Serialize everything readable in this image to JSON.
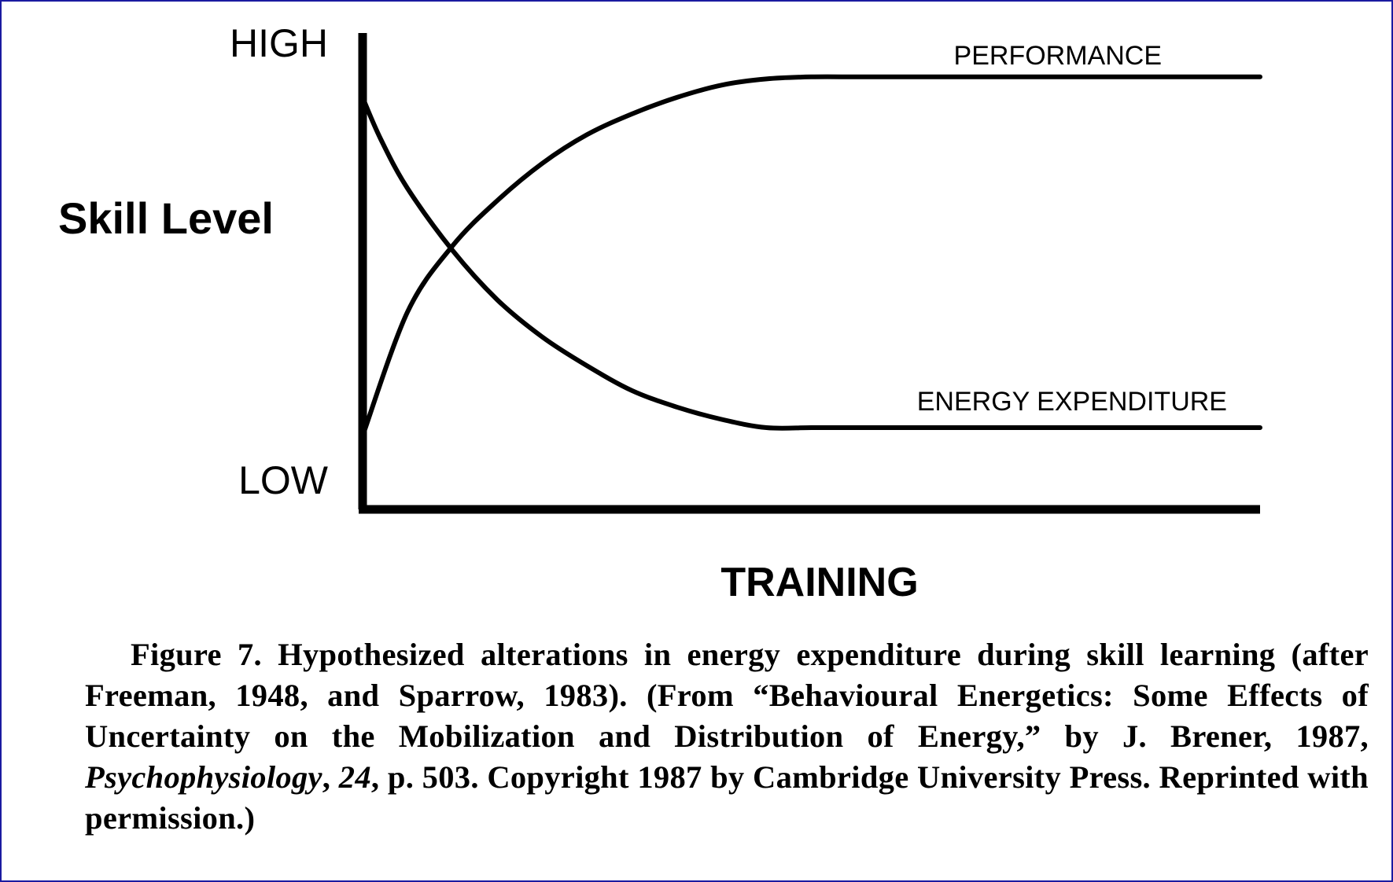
{
  "chart_data": {
    "type": "line",
    "title": "",
    "xlabel": "TRAINING",
    "ylabel": "Skill Level",
    "y_ticks": {
      "high": "HIGH",
      "low": "LOW"
    },
    "xlim": [
      0,
      1
    ],
    "ylim": [
      0,
      1
    ],
    "grid": false,
    "legend": "none (series labeled directly on lines)",
    "series": [
      {
        "name": "PERFORMANCE",
        "color": "#000000",
        "x": [
          0,
          0.05,
          0.1,
          0.15,
          0.2,
          0.25,
          0.3,
          0.35,
          0.4,
          0.45,
          0.5,
          0.55,
          0.6,
          1.0
        ],
        "y": [
          0.1,
          0.4,
          0.56,
          0.67,
          0.76,
          0.83,
          0.88,
          0.92,
          0.95,
          0.965,
          0.97,
          0.97,
          0.97,
          0.97
        ]
      },
      {
        "name": "ENERGY EXPENDITURE",
        "color": "#000000",
        "x": [
          0,
          0.02,
          0.05,
          0.1,
          0.15,
          0.2,
          0.25,
          0.3,
          0.35,
          0.4,
          0.45,
          0.5,
          0.55,
          1.0
        ],
        "y": [
          0.92,
          0.82,
          0.7,
          0.55,
          0.43,
          0.34,
          0.27,
          0.21,
          0.17,
          0.14,
          0.12,
          0.12,
          0.12,
          0.12
        ]
      }
    ]
  },
  "caption": {
    "p1": "Figure 7. Hypothesized alterations in energy expenditure during skill learning (after Freeman, 1948, and Sparrow, 1983). (From “Behavioural Energetics: Some Effects of Uncertainty on the Mobilization and Distribution of Energy,” by J. Brener, 1987, ",
    "journal": "Psychophysiology",
    "p2": ", ",
    "volume": "24",
    "p3": ", p. 503. Copyright 1987 by Cambridge University Press. Reprinted with permission.)"
  }
}
